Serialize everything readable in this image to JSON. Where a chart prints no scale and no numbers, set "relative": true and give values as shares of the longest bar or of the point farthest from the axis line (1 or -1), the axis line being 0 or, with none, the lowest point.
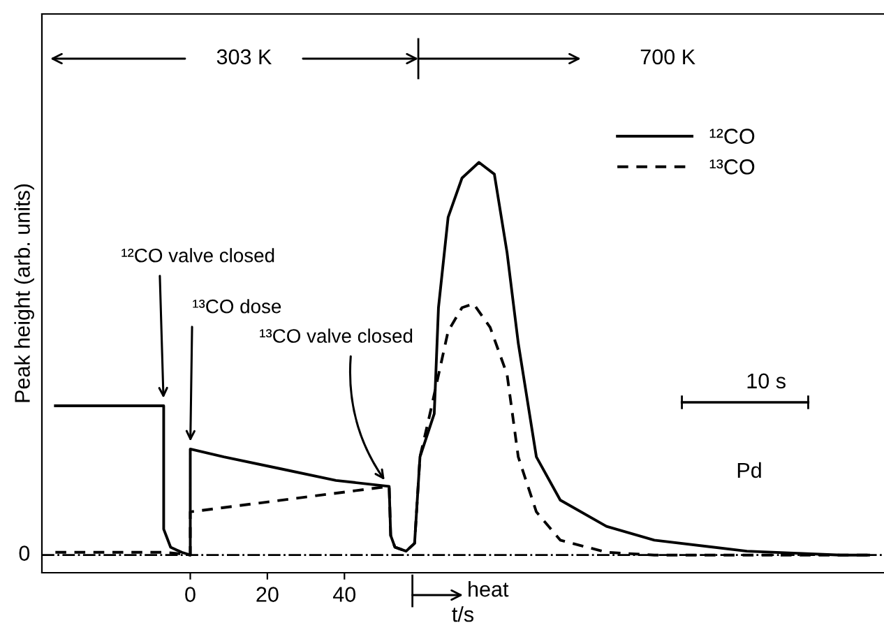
{
  "chart_data": {
    "type": "line",
    "relative": true,
    "xlabel": "t/s",
    "ylabel": "Peak height (arb. units)",
    "xlim": [
      -38.5,
      180
    ],
    "xticks": [
      0,
      20,
      40
    ],
    "legend": "top right",
    "grid": false,
    "series": [
      {
        "name": "¹²CO",
        "color": "#000000",
        "line_style": "solid",
        "x": [
          -35,
          -6.9,
          -6.9,
          -5.1,
          -2.2,
          0,
          0,
          8.7,
          23.3,
          37.8,
          51.6,
          52,
          53.1,
          56,
          58.2,
          59.6,
          63.3,
          64.4,
          66.9,
          70.5,
          74.9,
          78.9,
          82.2,
          85.1,
          89.8,
          96,
          108,
          120.4,
          144.4,
          168.7,
          176
        ],
        "values": [
          0.38,
          0.38,
          0.066,
          0.02,
          0.007,
          0,
          0.27,
          0.25,
          0.22,
          0.19,
          0.175,
          0.05,
          0.02,
          0.01,
          0.03,
          0.25,
          0.36,
          0.63,
          0.86,
          0.96,
          1,
          0.97,
          0.77,
          0.54,
          0.25,
          0.14,
          0.073,
          0.038,
          0.01,
          0,
          0
        ]
      },
      {
        "name": "¹³CO",
        "color": "#000000",
        "line_style": "dashed",
        "x": [
          -35,
          -6.9,
          -2.2,
          0,
          0,
          51.6,
          52,
          53.1,
          56,
          58.2,
          59.6,
          62.2,
          66.9,
          70.5,
          73.5,
          77.8,
          82.2,
          85.1,
          89.8,
          96,
          108,
          120.4,
          176
        ],
        "values": [
          0.007,
          0.007,
          0.003,
          0,
          0.11,
          0.175,
          0.05,
          0.02,
          0.01,
          0.03,
          0.25,
          0.36,
          0.57,
          0.63,
          0.64,
          0.58,
          0.46,
          0.25,
          0.11,
          0.038,
          0.007,
          0,
          0
        ]
      }
    ],
    "ref_lines": [
      {
        "axis": "y",
        "value": 0,
        "label": "0"
      }
    ],
    "annotations": [
      {
        "text": "¹²CO valve closed",
        "x": -6.9,
        "y": 0.38
      },
      {
        "text": "¹³CO dose",
        "x": 0,
        "y": 0.27
      },
      {
        "text": "¹³CO valve closed",
        "x": 51.6,
        "y": 0.175
      },
      "303 K",
      "700 K",
      "10 s",
      "Pd",
      "heat"
    ]
  }
}
